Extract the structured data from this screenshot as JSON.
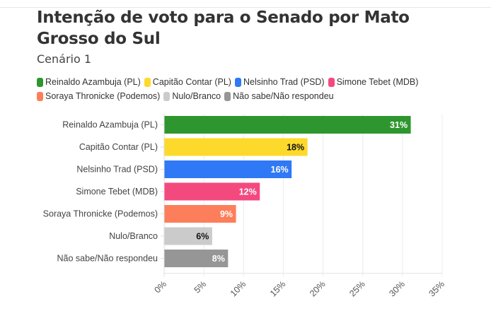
{
  "title": "Intenção de voto para o Senado por Mato Grosso do Sul",
  "subtitle": "Cenário 1",
  "chart_data": {
    "type": "bar",
    "orientation": "horizontal",
    "title": "Intenção de voto para o Senado por Mato Grosso do Sul",
    "subtitle": "Cenário 1",
    "categories": [
      "Reinaldo Azambuja (PL)",
      "Capitão Contar (PL)",
      "Nelsinho Trad (PSD)",
      "Simone Tebet (MDB)",
      "Soraya Thronicke (Podemos)",
      "Nulo/Branco",
      "Não sabe/Não respondeu"
    ],
    "values": [
      31,
      18,
      16,
      12,
      9,
      6,
      8
    ],
    "value_labels": [
      "31%",
      "18%",
      "16%",
      "12%",
      "9%",
      "6%",
      "8%"
    ],
    "colors": [
      "#2e962f",
      "#fdd92c",
      "#2f78f6",
      "#f4497f",
      "#fd7e5a",
      "#cbcbcb",
      "#969696"
    ],
    "label_colors": [
      "#ffffff",
      "#111111",
      "#ffffff",
      "#ffffff",
      "#ffffff",
      "#111111",
      "#ffffff"
    ],
    "legend": [
      {
        "label": "Reinaldo Azambuja (PL)",
        "color": "#2e962f"
      },
      {
        "label": "Capitão Contar (PL)",
        "color": "#fdd92c"
      },
      {
        "label": "Nelsinho Trad (PSD)",
        "color": "#2f78f6"
      },
      {
        "label": "Simone Tebet (MDB)",
        "color": "#f4497f"
      },
      {
        "label": "Soraya Thronicke (Podemos)",
        "color": "#fd7e5a"
      },
      {
        "label": "Nulo/Branco",
        "color": "#cbcbcb"
      },
      {
        "label": "Não sabe/Não respondeu",
        "color": "#969696"
      }
    ],
    "legend_position": "top-left",
    "xlabel": "",
    "ylabel": "",
    "xlim": [
      0,
      35
    ],
    "xticks": [
      0,
      5,
      10,
      15,
      20,
      25,
      30,
      35
    ],
    "xtick_labels": [
      "0%",
      "5%",
      "10%",
      "15%",
      "20%",
      "25%",
      "30%",
      "35%"
    ],
    "grid": true
  }
}
